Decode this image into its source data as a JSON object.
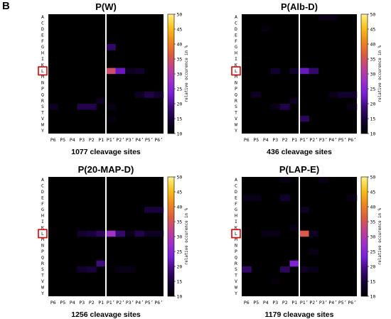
{
  "figure": {
    "panel_letter": "B"
  },
  "colors": {
    "cbar_stops": [
      "#000000",
      "#140033",
      "#3c0a78",
      "#7a1fd8",
      "#9e31c8",
      "#c2418e",
      "#dd5e3c",
      "#ee8a1e",
      "#f8c21a",
      "#fff08a"
    ],
    "highlight": "#e00000",
    "divider": "#ffffff",
    "cell_bg": "#000000"
  },
  "chart_data": [
    {
      "type": "heatmap",
      "title": "P(W)",
      "subtitle": "1077 cleavage sites",
      "colorbar_label": "relative occurence in %",
      "colorbar_ticks": [
        "10",
        "15",
        "20",
        "25",
        "30",
        "35",
        "40",
        "45",
        "50"
      ],
      "vmin": 10,
      "vmax": 50,
      "x_categories": [
        "P6",
        "P5",
        "P4",
        "P3",
        "P2",
        "P1",
        "P1’",
        "P2’",
        "P3’",
        "P4’",
        "P5’",
        "P6’"
      ],
      "y_categories": [
        "A",
        "C",
        "D",
        "E",
        "F",
        "G",
        "H",
        "I",
        "K",
        "L",
        "M",
        "N",
        "P",
        "Q",
        "R",
        "S",
        "T",
        "V",
        "W",
        "Y"
      ],
      "highlight_row": "L",
      "cells": [
        {
          "y": "G",
          "x": "P1’",
          "v": 18
        },
        {
          "y": "L",
          "x": "P1’",
          "v": 34
        },
        {
          "y": "L",
          "x": "P2’",
          "v": 22
        },
        {
          "y": "L",
          "x": "P3’",
          "v": 13
        },
        {
          "y": "L",
          "x": "P4’",
          "v": 14
        },
        {
          "y": "Q",
          "x": "P4’",
          "v": 13
        },
        {
          "y": "Q",
          "x": "P5’",
          "v": 16
        },
        {
          "y": "Q",
          "x": "P6’",
          "v": 14
        },
        {
          "y": "S",
          "x": "P6",
          "v": 13
        },
        {
          "y": "S",
          "x": "P3",
          "v": 16
        },
        {
          "y": "S",
          "x": "P2",
          "v": 16
        },
        {
          "y": "R",
          "x": "P1",
          "v": 13
        },
        {
          "y": "S",
          "x": "P1’",
          "v": 12
        },
        {
          "y": "V",
          "x": "P1’",
          "v": 11
        }
      ]
    },
    {
      "type": "heatmap",
      "title": "P(Alb-D)",
      "subtitle": "436 cleavage sites",
      "colorbar_label": "relative occurence in %",
      "colorbar_ticks": [
        "10",
        "15",
        "20",
        "25",
        "30",
        "35",
        "40",
        "45",
        "50"
      ],
      "vmin": 10,
      "vmax": 50,
      "x_categories": [
        "P6",
        "P5",
        "P4",
        "P3",
        "P2",
        "P1",
        "P1’",
        "P2’",
        "P3’",
        "P4’",
        "P5’",
        "P6’"
      ],
      "y_categories": [
        "A",
        "C",
        "D",
        "E",
        "F",
        "G",
        "H",
        "I",
        "K",
        "L",
        "M",
        "N",
        "P",
        "Q",
        "R",
        "S",
        "T",
        "V",
        "W",
        "Y"
      ],
      "highlight_row": "L",
      "cells": [
        {
          "y": "A",
          "x": "P3’",
          "v": 12
        },
        {
          "y": "A",
          "x": "P4’",
          "v": 12
        },
        {
          "y": "D",
          "x": "P4",
          "v": 11
        },
        {
          "y": "L",
          "x": "P3",
          "v": 14
        },
        {
          "y": "L",
          "x": "P1",
          "v": 14
        },
        {
          "y": "L",
          "x": "P1’",
          "v": 22
        },
        {
          "y": "L",
          "x": "P2’",
          "v": 18
        },
        {
          "y": "Q",
          "x": "P5",
          "v": 13
        },
        {
          "y": "Q",
          "x": "P4’",
          "v": 12
        },
        {
          "y": "Q",
          "x": "P5’",
          "v": 14
        },
        {
          "y": "Q",
          "x": "P6’",
          "v": 14
        },
        {
          "y": "R",
          "x": "P1",
          "v": 13
        },
        {
          "y": "S",
          "x": "P3",
          "v": 12
        },
        {
          "y": "S",
          "x": "P2",
          "v": 16
        },
        {
          "y": "S",
          "x": "P6’",
          "v": 12
        },
        {
          "y": "V",
          "x": "P1’",
          "v": 17
        }
      ]
    },
    {
      "type": "heatmap",
      "title": "P(20-MAP-D)",
      "subtitle": "1256 cleavage sites",
      "colorbar_label": "relative occurence in %",
      "colorbar_ticks": [
        "10",
        "15",
        "20",
        "25",
        "30",
        "35",
        "40",
        "45",
        "50"
      ],
      "vmin": 10,
      "vmax": 50,
      "x_categories": [
        "P6",
        "P5",
        "P4",
        "P3",
        "P2",
        "P1",
        "P1’",
        "P2’",
        "P3’",
        "P4’",
        "P5’",
        "P6’"
      ],
      "y_categories": [
        "A",
        "C",
        "D",
        "E",
        "F",
        "G",
        "H",
        "I",
        "K",
        "L",
        "M",
        "N",
        "P",
        "Q",
        "R",
        "S",
        "T",
        "V",
        "W",
        "Y"
      ],
      "highlight_row": "L",
      "cells": [
        {
          "y": "G",
          "x": "P5’",
          "v": 15
        },
        {
          "y": "G",
          "x": "P6’",
          "v": 15
        },
        {
          "y": "L",
          "x": "P3",
          "v": 14
        },
        {
          "y": "L",
          "x": "P2",
          "v": 15
        },
        {
          "y": "L",
          "x": "P1",
          "v": 17
        },
        {
          "y": "L",
          "x": "P1’",
          "v": 28
        },
        {
          "y": "L",
          "x": "P2’",
          "v": 18
        },
        {
          "y": "L",
          "x": "P3’",
          "v": 12
        },
        {
          "y": "L",
          "x": "P4’",
          "v": 16
        },
        {
          "y": "L",
          "x": "P5’",
          "v": 13
        },
        {
          "y": "L",
          "x": "P6’",
          "v": 13
        },
        {
          "y": "R",
          "x": "P1",
          "v": 19
        },
        {
          "y": "S",
          "x": "P3",
          "v": 14
        },
        {
          "y": "S",
          "x": "P2",
          "v": 15
        },
        {
          "y": "S",
          "x": "P2’",
          "v": 12
        },
        {
          "y": "S",
          "x": "P3’",
          "v": 12
        }
      ]
    },
    {
      "type": "heatmap",
      "title": "P(LAP-E)",
      "subtitle": "1179 cleavage sites",
      "colorbar_label": "relative occurence in %",
      "colorbar_ticks": [
        "10",
        "15",
        "20",
        "25",
        "30",
        "35",
        "40",
        "45",
        "50"
      ],
      "vmin": 10,
      "vmax": 50,
      "x_categories": [
        "P6",
        "P5",
        "P4",
        "P3",
        "P2",
        "P1",
        "P1’",
        "P2’",
        "P3’",
        "P4’",
        "P5’",
        "P6’"
      ],
      "y_categories": [
        "A",
        "C",
        "D",
        "E",
        "F",
        "G",
        "H",
        "I",
        "K",
        "L",
        "M",
        "N",
        "P",
        "Q",
        "R",
        "S",
        "T",
        "V",
        "W",
        "Y"
      ],
      "highlight_row": "L",
      "cells": [
        {
          "y": "A",
          "x": "P2",
          "v": 12
        },
        {
          "y": "A",
          "x": "P3’",
          "v": 12
        },
        {
          "y": "E",
          "x": "P6",
          "v": 12
        },
        {
          "y": "E",
          "x": "P5",
          "v": 12
        },
        {
          "y": "E",
          "x": "P2",
          "v": 14
        },
        {
          "y": "E",
          "x": "P6’",
          "v": 12
        },
        {
          "y": "G",
          "x": "P1’",
          "v": 13
        },
        {
          "y": "L",
          "x": "P4",
          "v": 12
        },
        {
          "y": "L",
          "x": "P3",
          "v": 12
        },
        {
          "y": "L",
          "x": "P1’",
          "v": 36
        },
        {
          "y": "L",
          "x": "P2’",
          "v": 13
        },
        {
          "y": "K",
          "x": "P1",
          "v": 12
        },
        {
          "y": "P",
          "x": "P2’",
          "v": 12
        },
        {
          "y": "R",
          "x": "P1",
          "v": 24
        },
        {
          "y": "S",
          "x": "P6",
          "v": 18
        },
        {
          "y": "S",
          "x": "P2",
          "v": 17
        },
        {
          "y": "S",
          "x": "P1’",
          "v": 13
        },
        {
          "y": "S",
          "x": "P2’",
          "v": 12
        },
        {
          "y": "V",
          "x": "P3",
          "v": 11
        }
      ]
    }
  ]
}
